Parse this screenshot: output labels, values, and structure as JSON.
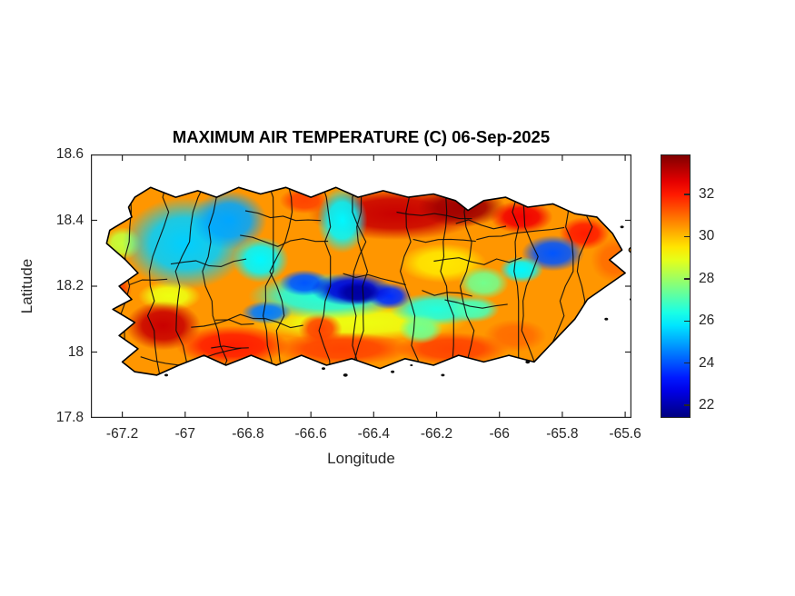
{
  "title": "MAXIMUM AIR TEMPERATURE (C) 06-Sep-2025",
  "chart_data": {
    "type": "heatmap",
    "title": "MAXIMUM AIR TEMPERATURE (C) 06-Sep-2025",
    "xlabel": "Longitude",
    "ylabel": "Latitude",
    "xlim": [
      -67.3,
      -65.58
    ],
    "ylim": [
      17.8,
      18.6
    ],
    "xticks": [
      -67.2,
      -67.0,
      -66.8,
      -66.6,
      -66.4,
      -66.2,
      -66.0,
      -65.8,
      -65.6
    ],
    "xtick_labels": [
      "-67.2",
      "-67",
      "-66.8",
      "-66.6",
      "-66.4",
      "-66.2",
      "-66",
      "-65.8",
      "-65.6"
    ],
    "yticks": [
      18.6,
      18.4,
      18.2,
      18.0,
      17.8
    ],
    "ytick_labels": [
      "18.6",
      "18.4",
      "18.2",
      "18",
      "17.8"
    ],
    "grid": false,
    "colorbar": {
      "colormap": "jet",
      "position": "right",
      "tmin": 21.4,
      "tmax": 33.9,
      "ticks": [
        22,
        24,
        26,
        28,
        30,
        32
      ],
      "tick_labels": [
        "22",
        "24",
        "26",
        "28",
        "30",
        "32"
      ]
    },
    "units": "C",
    "region": "Puerto Rico",
    "base_temp": 30.5,
    "island_outline": [
      [
        -67.16,
        18.47
      ],
      [
        -67.11,
        18.5
      ],
      [
        -67.03,
        18.47
      ],
      [
        -66.96,
        18.49
      ],
      [
        -66.9,
        18.47
      ],
      [
        -66.83,
        18.5
      ],
      [
        -66.76,
        18.48
      ],
      [
        -66.68,
        18.5
      ],
      [
        -66.6,
        18.47
      ],
      [
        -66.52,
        18.5
      ],
      [
        -66.45,
        18.47
      ],
      [
        -66.37,
        18.49
      ],
      [
        -66.29,
        18.47
      ],
      [
        -66.21,
        18.48
      ],
      [
        -66.14,
        18.46
      ],
      [
        -66.1,
        18.43
      ],
      [
        -66.05,
        18.46
      ],
      [
        -65.98,
        18.47
      ],
      [
        -65.91,
        18.44
      ],
      [
        -65.83,
        18.45
      ],
      [
        -65.76,
        18.42
      ],
      [
        -65.69,
        18.41
      ],
      [
        -65.64,
        18.36
      ],
      [
        -65.61,
        18.31
      ],
      [
        -65.65,
        18.28
      ],
      [
        -65.6,
        18.24
      ],
      [
        -65.66,
        18.2
      ],
      [
        -65.72,
        18.16
      ],
      [
        -65.76,
        18.1
      ],
      [
        -65.83,
        18.03
      ],
      [
        -65.89,
        17.97
      ],
      [
        -65.97,
        17.99
      ],
      [
        -66.05,
        17.97
      ],
      [
        -66.13,
        17.99
      ],
      [
        -66.21,
        17.96
      ],
      [
        -66.3,
        17.98
      ],
      [
        -66.38,
        17.95
      ],
      [
        -66.47,
        17.98
      ],
      [
        -66.55,
        17.96
      ],
      [
        -66.63,
        17.99
      ],
      [
        -66.71,
        17.96
      ],
      [
        -66.79,
        17.99
      ],
      [
        -66.87,
        17.96
      ],
      [
        -66.94,
        17.99
      ],
      [
        -67.02,
        17.96
      ],
      [
        -67.09,
        17.93
      ],
      [
        -67.16,
        17.94
      ],
      [
        -67.2,
        17.97
      ],
      [
        -67.15,
        18.01
      ],
      [
        -67.21,
        18.05
      ],
      [
        -67.16,
        18.09
      ],
      [
        -67.23,
        18.13
      ],
      [
        -67.17,
        18.16
      ],
      [
        -67.21,
        18.2
      ],
      [
        -67.15,
        18.24
      ],
      [
        -67.19,
        18.28
      ],
      [
        -67.25,
        18.33
      ],
      [
        -67.24,
        18.37
      ],
      [
        -67.17,
        18.41
      ],
      [
        -67.18,
        18.44
      ]
    ],
    "temperature_features": [
      {
        "lon": -67.2,
        "lat": 18.33,
        "rx": 0.06,
        "ry": 0.05,
        "temp": 28.5
      },
      {
        "lon": -66.45,
        "lat": 18.09,
        "rx": 0.35,
        "ry": 0.055,
        "temp": 29.0
      },
      {
        "lon": -66.18,
        "lat": 18.27,
        "rx": 0.14,
        "ry": 0.06,
        "temp": 29.5
      },
      {
        "lon": -67.05,
        "lat": 18.17,
        "rx": 0.1,
        "ry": 0.045,
        "temp": 29.0
      },
      {
        "lon": -66.33,
        "lat": 18.42,
        "rx": 0.28,
        "ry": 0.08,
        "temp": 33.0
      },
      {
        "lon": -66.12,
        "lat": 18.44,
        "rx": 0.14,
        "ry": 0.06,
        "temp": 33.5
      },
      {
        "lon": -65.93,
        "lat": 18.41,
        "rx": 0.1,
        "ry": 0.05,
        "temp": 32.5
      },
      {
        "lon": -66.62,
        "lat": 18.46,
        "rx": 0.08,
        "ry": 0.04,
        "temp": 31.5
      },
      {
        "lon": -65.73,
        "lat": 18.36,
        "rx": 0.08,
        "ry": 0.05,
        "temp": 32.0
      },
      {
        "lon": -65.63,
        "lat": 18.28,
        "rx": 0.08,
        "ry": 0.07,
        "temp": 31.0
      },
      {
        "lon": -67.22,
        "lat": 18.19,
        "rx": 0.05,
        "ry": 0.05,
        "temp": 31.5
      },
      {
        "lon": -67.07,
        "lat": 18.08,
        "rx": 0.12,
        "ry": 0.075,
        "temp": 33.0
      },
      {
        "lon": -66.85,
        "lat": 18.02,
        "rx": 0.18,
        "ry": 0.06,
        "temp": 32.0
      },
      {
        "lon": -66.5,
        "lat": 18.01,
        "rx": 0.22,
        "ry": 0.05,
        "temp": 31.5
      },
      {
        "lon": -66.15,
        "lat": 18.01,
        "rx": 0.18,
        "ry": 0.05,
        "temp": 31.5
      },
      {
        "lon": -65.95,
        "lat": 18.05,
        "rx": 0.1,
        "ry": 0.05,
        "temp": 31.0
      },
      {
        "lon": -66.57,
        "lat": 18.07,
        "rx": 0.07,
        "ry": 0.05,
        "temp": 31.5
      },
      {
        "lon": -67.0,
        "lat": 18.33,
        "rx": 0.2,
        "ry": 0.14,
        "temp": 25.5
      },
      {
        "lon": -66.86,
        "lat": 18.4,
        "rx": 0.12,
        "ry": 0.09,
        "temp": 25.0
      },
      {
        "lon": -66.76,
        "lat": 18.28,
        "rx": 0.09,
        "ry": 0.07,
        "temp": 26.0
      },
      {
        "lon": -66.5,
        "lat": 18.4,
        "rx": 0.08,
        "ry": 0.1,
        "temp": 26.0
      },
      {
        "lon": -66.55,
        "lat": 18.17,
        "rx": 0.25,
        "ry": 0.07,
        "temp": 26.5
      },
      {
        "lon": -66.2,
        "lat": 18.13,
        "rx": 0.15,
        "ry": 0.05,
        "temp": 26.5
      },
      {
        "lon": -66.08,
        "lat": 18.13,
        "rx": 0.08,
        "ry": 0.04,
        "temp": 27.0
      },
      {
        "lon": -66.05,
        "lat": 18.21,
        "rx": 0.08,
        "ry": 0.05,
        "temp": 27.5
      },
      {
        "lon": -66.25,
        "lat": 18.07,
        "rx": 0.07,
        "ry": 0.045,
        "temp": 27.5
      },
      {
        "lon": -66.74,
        "lat": 18.12,
        "rx": 0.08,
        "ry": 0.035,
        "temp": 24.5
      },
      {
        "lon": -66.62,
        "lat": 18.21,
        "rx": 0.08,
        "ry": 0.04,
        "temp": 24.0
      },
      {
        "lon": -65.83,
        "lat": 18.3,
        "rx": 0.1,
        "ry": 0.055,
        "temp": 24.0
      },
      {
        "lon": -65.93,
        "lat": 18.25,
        "rx": 0.07,
        "ry": 0.04,
        "temp": 26.0
      },
      {
        "lon": -66.35,
        "lat": 18.17,
        "rx": 0.07,
        "ry": 0.04,
        "temp": 23.5
      },
      {
        "lon": -66.47,
        "lat": 18.19,
        "rx": 0.13,
        "ry": 0.05,
        "temp": 22.5
      },
      {
        "lon": -66.45,
        "lat": 18.18,
        "rx": 0.07,
        "ry": 0.035,
        "temp": 21.8
      }
    ],
    "islets": [
      {
        "lon": -67.06,
        "lat": 17.93,
        "r": 2
      },
      {
        "lon": -66.56,
        "lat": 17.95,
        "r": 2
      },
      {
        "lon": -66.49,
        "lat": 17.93,
        "r": 2.5
      },
      {
        "lon": -66.34,
        "lat": 17.94,
        "r": 2
      },
      {
        "lon": -66.28,
        "lat": 17.96,
        "r": 1.5
      },
      {
        "lon": -66.18,
        "lat": 17.93,
        "r": 2
      },
      {
        "lon": -65.91,
        "lat": 17.97,
        "r": 2.5
      },
      {
        "lon": -65.66,
        "lat": 18.1,
        "r": 2
      },
      {
        "lon": -65.58,
        "lat": 18.16,
        "r": 2
      },
      {
        "lon": -65.57,
        "lat": 18.25,
        "r": 2
      },
      {
        "lon": -65.61,
        "lat": 18.38,
        "r": 2
      },
      {
        "lon": -65.575,
        "lat": 18.31,
        "r": 4.5
      }
    ]
  }
}
